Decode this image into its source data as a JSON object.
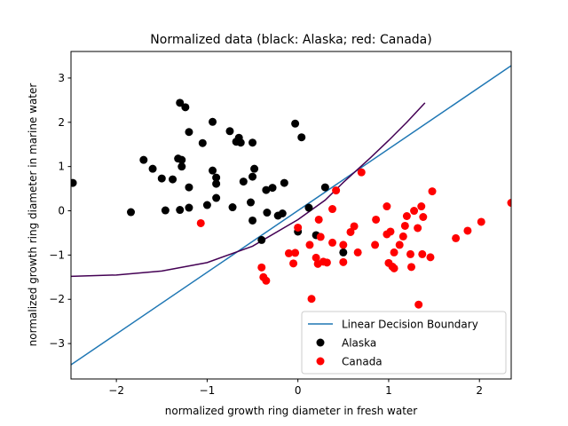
{
  "chart_data": {
    "type": "scatter",
    "title": "Normalized data (black: Alaska; red: Canada)",
    "xlabel": "normalized growth ring diameter in fresh water",
    "ylabel": "normalized growth ring diameter in marine water",
    "xlim": [
      -2.5,
      2.35
    ],
    "ylim": [
      -3.8,
      3.6
    ],
    "xticks": [
      -2,
      -1,
      0,
      1,
      2
    ],
    "yticks": [
      -3,
      -2,
      -1,
      0,
      1,
      2,
      3
    ],
    "grid": false,
    "legend_position": "lower-right",
    "series": [
      {
        "name": "Alaska",
        "kind": "scatter",
        "color": "#000000",
        "points": [
          [
            -2.48,
            0.63
          ],
          [
            -1.84,
            -0.03
          ],
          [
            -1.7,
            1.15
          ],
          [
            -1.6,
            0.95
          ],
          [
            -1.5,
            0.73
          ],
          [
            -1.46,
            0.01
          ],
          [
            -1.38,
            0.71
          ],
          [
            -1.32,
            1.18
          ],
          [
            -1.3,
            2.44
          ],
          [
            -1.3,
            0.02
          ],
          [
            -1.28,
            1.0
          ],
          [
            -1.28,
            1.15
          ],
          [
            -1.24,
            2.34
          ],
          [
            -1.2,
            0.53
          ],
          [
            -1.2,
            0.07
          ],
          [
            -1.2,
            1.78
          ],
          [
            -1.05,
            1.53
          ],
          [
            -1.0,
            0.13
          ],
          [
            -0.94,
            2.01
          ],
          [
            -0.94,
            0.91
          ],
          [
            -0.9,
            0.61
          ],
          [
            -0.9,
            0.75
          ],
          [
            -0.9,
            0.29
          ],
          [
            -0.75,
            1.8
          ],
          [
            -0.72,
            0.08
          ],
          [
            -0.68,
            1.56
          ],
          [
            -0.65,
            1.65
          ],
          [
            -0.63,
            1.54
          ],
          [
            -0.6,
            0.66
          ],
          [
            -0.52,
            0.19
          ],
          [
            -0.5,
            1.54
          ],
          [
            -0.5,
            0.77
          ],
          [
            -0.48,
            0.95
          ],
          [
            -0.5,
            -0.22
          ],
          [
            -0.4,
            -0.66
          ],
          [
            -0.35,
            0.47
          ],
          [
            -0.34,
            -0.04
          ],
          [
            -0.28,
            0.52
          ],
          [
            -0.22,
            -0.11
          ],
          [
            -0.17,
            -0.06
          ],
          [
            -0.15,
            0.63
          ],
          [
            -0.03,
            1.97
          ],
          [
            0.04,
            1.66
          ],
          [
            0.0,
            -0.47
          ],
          [
            0.12,
            0.07
          ],
          [
            0.2,
            -0.55
          ],
          [
            0.3,
            0.53
          ],
          [
            0.5,
            -0.94
          ]
        ]
      },
      {
        "name": "Canada",
        "kind": "scatter",
        "color": "#ff0000",
        "points": [
          [
            -1.07,
            -0.28
          ],
          [
            -0.4,
            -1.28
          ],
          [
            -0.38,
            -1.5
          ],
          [
            -0.35,
            -1.58
          ],
          [
            -0.1,
            -0.96
          ],
          [
            -0.05,
            -1.19
          ],
          [
            -0.03,
            -0.95
          ],
          [
            0.0,
            -0.38
          ],
          [
            0.13,
            -0.77
          ],
          [
            0.15,
            -1.99
          ],
          [
            0.2,
            -1.06
          ],
          [
            0.22,
            -1.2
          ],
          [
            0.23,
            -0.2
          ],
          [
            0.25,
            -0.59
          ],
          [
            0.28,
            -1.15
          ],
          [
            0.32,
            -1.17
          ],
          [
            0.38,
            0.04
          ],
          [
            0.38,
            -0.72
          ],
          [
            0.42,
            0.46
          ],
          [
            0.5,
            -0.77
          ],
          [
            0.5,
            -1.16
          ],
          [
            0.58,
            -0.48
          ],
          [
            0.62,
            -0.35
          ],
          [
            0.66,
            -0.94
          ],
          [
            0.7,
            0.87
          ],
          [
            0.85,
            -0.77
          ],
          [
            0.86,
            -0.2
          ],
          [
            0.98,
            -0.53
          ],
          [
            0.98,
            0.1
          ],
          [
            1.0,
            -1.18
          ],
          [
            1.02,
            -0.47
          ],
          [
            1.04,
            -1.26
          ],
          [
            1.06,
            -1.3
          ],
          [
            1.06,
            -0.94
          ],
          [
            1.12,
            -0.77
          ],
          [
            1.16,
            -0.58
          ],
          [
            1.18,
            -0.34
          ],
          [
            1.2,
            -0.12
          ],
          [
            1.24,
            -0.98
          ],
          [
            1.25,
            -1.27
          ],
          [
            1.28,
            0.0
          ],
          [
            1.32,
            -0.39
          ],
          [
            1.33,
            -2.12
          ],
          [
            1.36,
            0.1
          ],
          [
            1.37,
            -0.98
          ],
          [
            1.38,
            -0.14
          ],
          [
            1.46,
            -1.05
          ],
          [
            1.48,
            0.44
          ],
          [
            1.74,
            -0.62
          ],
          [
            1.87,
            -0.45
          ],
          [
            2.02,
            -0.25
          ],
          [
            2.35,
            0.18
          ]
        ]
      },
      {
        "name": "Linear Decision Boundary",
        "kind": "line",
        "color": "#1f77b4",
        "x": [
          -2.5,
          2.35
        ],
        "y": [
          -3.48,
          3.28
        ]
      },
      {
        "kind": "curve",
        "color": "#440154",
        "x": [
          -2.5,
          -2.0,
          -1.5,
          -1.0,
          -0.5,
          0.0,
          0.3,
          0.5,
          0.8,
          1.0,
          1.2,
          1.4
        ],
        "y": [
          -1.48,
          -1.45,
          -1.36,
          -1.17,
          -0.8,
          -0.2,
          0.24,
          0.64,
          1.2,
          1.59,
          2.0,
          2.44
        ]
      }
    ]
  }
}
